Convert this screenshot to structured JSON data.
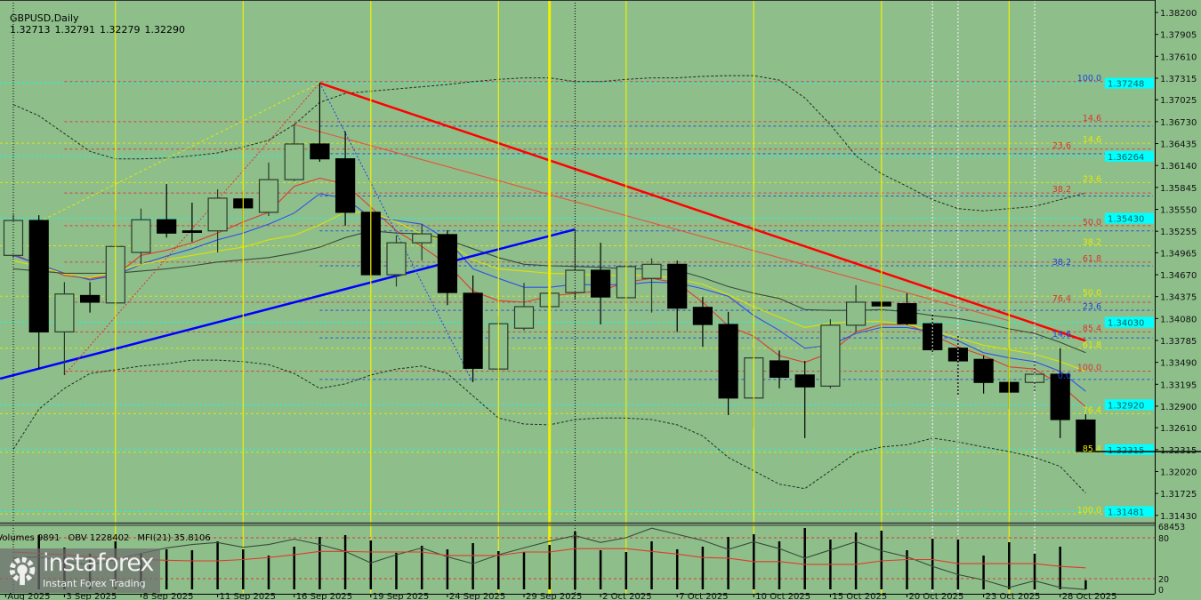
{
  "header": {
    "symbol": "GBPUSD,Daily",
    "open": "1.32713",
    "high": "1.32791",
    "low": "1.32279",
    "close": "1.32290"
  },
  "indicator_header": {
    "volumes": "Volumes 9891",
    "obv": "OBV 1228402",
    "mfi": "MFI(21) 35.8106"
  },
  "indicator_axis": [
    "68453",
    "80",
    "20",
    "0"
  ],
  "logo": {
    "brand": "instaforex",
    "tagline": "Instant Forex Trading"
  },
  "colors": {
    "background": "#8ebf8b",
    "bull_body": "#8ebf8b",
    "bear_body": "#000000",
    "trend_down": "#ff0000",
    "trend_up": "#0000ff",
    "cyan_level": "#00ffff",
    "fib_red": "#e03030",
    "fib_yellow": "#e8e800",
    "fib_blue": "#2040e0",
    "ma_red": "#e03a2a",
    "ma_blue": "#3050e8",
    "ma_yellow": "#e0e000",
    "ma_gray": "#3a4a3a",
    "mfi": "#e03a2a",
    "obv": "#3a4a3a"
  },
  "chart_data": {
    "type": "candlestick",
    "title": "GBPUSD,Daily",
    "ylim": [
      1.31332,
      1.38356
    ],
    "y_ticks": [
      "1.38200",
      "1.37905",
      "1.37610",
      "1.37315",
      "1.37025",
      "1.36730",
      "1.36435",
      "1.36140",
      "1.35845",
      "1.35550",
      "1.35255",
      "1.34965",
      "1.34670",
      "1.34375",
      "1.34080",
      "1.33785",
      "1.33490",
      "1.33195",
      "1.32900",
      "1.32610",
      "1.32315",
      "1.32020",
      "1.31725",
      "1.31430"
    ],
    "x_ticks": [
      {
        "label": "Aug 2025",
        "index": -0.3
      },
      {
        "label": "3 Sep 2025",
        "index": 2
      },
      {
        "label": "8 Sep 2025",
        "index": 5
      },
      {
        "label": "11 Sep 2025",
        "index": 8
      },
      {
        "label": "16 Sep 2025",
        "index": 11
      },
      {
        "label": "19 Sep 2025",
        "index": 14
      },
      {
        "label": "24 Sep 2025",
        "index": 17
      },
      {
        "label": "29 Sep 2025",
        "index": 20
      },
      {
        "label": "2 Oct 2025",
        "index": 23
      },
      {
        "label": "7 Oct 2025",
        "index": 26
      },
      {
        "label": "10 Oct 2025",
        "index": 29
      },
      {
        "label": "15 Oct 2025",
        "index": 32
      },
      {
        "label": "20 Oct 2025",
        "index": 35
      },
      {
        "label": "23 Oct 2025",
        "index": 38
      },
      {
        "label": "28 Oct 2025",
        "index": 41
      }
    ],
    "candles": [
      [
        "2025-09-01",
        1.3493,
        1.3548,
        1.349,
        1.354
      ],
      [
        "2025-09-02",
        1.354,
        1.3547,
        1.334,
        1.339
      ],
      [
        "2025-09-03",
        1.339,
        1.3457,
        1.3332,
        1.3441
      ],
      [
        "2025-09-04",
        1.3439,
        1.3457,
        1.3416,
        1.343
      ],
      [
        "2025-09-05",
        1.3429,
        1.3553,
        1.3426,
        1.3505
      ],
      [
        "2025-09-08",
        1.3497,
        1.3556,
        1.3481,
        1.3541
      ],
      [
        "2025-09-09",
        1.3541,
        1.3589,
        1.3517,
        1.3523
      ],
      [
        "2025-09-10",
        1.3526,
        1.3564,
        1.3511,
        1.3524
      ],
      [
        "2025-09-11",
        1.3526,
        1.3582,
        1.3497,
        1.357
      ],
      [
        "2025-09-12",
        1.3569,
        1.358,
        1.3523,
        1.3557
      ],
      [
        "2025-09-15",
        1.3551,
        1.3618,
        1.3546,
        1.3595
      ],
      [
        "2025-09-16",
        1.3595,
        1.367,
        1.3593,
        1.3643
      ],
      [
        "2025-09-17",
        1.3643,
        1.3725,
        1.3619,
        1.3623
      ],
      [
        "2025-09-18",
        1.3623,
        1.366,
        1.3533,
        1.3551
      ],
      [
        "2025-09-19",
        1.3551,
        1.3558,
        1.3462,
        1.3467
      ],
      [
        "2025-09-22",
        1.3467,
        1.352,
        1.3451,
        1.351
      ],
      [
        "2025-09-23",
        1.351,
        1.3535,
        1.3486,
        1.3522
      ],
      [
        "2025-09-24",
        1.3521,
        1.3527,
        1.3426,
        1.3443
      ],
      [
        "2025-09-25",
        1.3442,
        1.3466,
        1.3323,
        1.3341
      ],
      [
        "2025-09-26",
        1.334,
        1.3412,
        1.3328,
        1.3401
      ],
      [
        "2025-09-29",
        1.3395,
        1.3456,
        1.3392,
        1.3424
      ],
      [
        "2025-09-30",
        1.3424,
        1.3466,
        1.3401,
        1.3442
      ],
      [
        "2025-10-01",
        1.3443,
        1.3527,
        1.3434,
        1.3473
      ],
      [
        "2025-10-02",
        1.3473,
        1.351,
        1.34,
        1.3437
      ],
      [
        "2025-10-03",
        1.3436,
        1.3485,
        1.3428,
        1.3478
      ],
      [
        "2025-10-06",
        1.3462,
        1.3489,
        1.3416,
        1.3481
      ],
      [
        "2025-10-07",
        1.3481,
        1.3486,
        1.339,
        1.3422
      ],
      [
        "2025-10-08",
        1.3423,
        1.3437,
        1.337,
        1.34
      ],
      [
        "2025-10-09",
        1.34,
        1.3417,
        1.3278,
        1.3301
      ],
      [
        "2025-10-10",
        1.3301,
        1.3369,
        1.326,
        1.3355
      ],
      [
        "2025-10-13",
        1.3351,
        1.3365,
        1.3314,
        1.3329
      ],
      [
        "2025-10-14",
        1.3332,
        1.3351,
        1.3247,
        1.3316
      ],
      [
        "2025-10-15",
        1.3317,
        1.3407,
        1.3314,
        1.3399
      ],
      [
        "2025-10-16",
        1.3399,
        1.3453,
        1.339,
        1.343
      ],
      [
        "2025-10-17",
        1.343,
        1.3469,
        1.339,
        1.3425
      ],
      [
        "2025-10-20",
        1.3428,
        1.3442,
        1.3399,
        1.3401
      ],
      [
        "2025-10-21",
        1.3401,
        1.3414,
        1.336,
        1.3366
      ],
      [
        "2025-10-22",
        1.3368,
        1.3386,
        1.3304,
        1.3351
      ],
      [
        "2025-10-23",
        1.3353,
        1.3358,
        1.3307,
        1.3322
      ],
      [
        "2025-10-24",
        1.3322,
        1.3368,
        1.3286,
        1.3309
      ],
      [
        "2025-10-27",
        1.3322,
        1.3351,
        1.331,
        1.3333
      ],
      [
        "2025-10-28",
        1.3333,
        1.3368,
        1.3247,
        1.3272
      ],
      [
        "2025-10-29",
        1.32713,
        1.32791,
        1.32279,
        1.3229
      ]
    ],
    "moving_averages": [
      {
        "color": "#e03a2a",
        "values": [
          1.3495,
          1.348,
          1.3466,
          1.3462,
          1.3466,
          1.3493,
          1.35,
          1.351,
          1.3523,
          1.3538,
          1.3551,
          1.3586,
          1.3597,
          1.3589,
          1.3558,
          1.3526,
          1.3505,
          1.3481,
          1.3445,
          1.3432,
          1.343,
          1.3438,
          1.3442,
          1.3445,
          1.3457,
          1.3462,
          1.3456,
          1.343,
          1.3398,
          1.3384,
          1.3358,
          1.3349,
          1.3362,
          1.339,
          1.34,
          1.34,
          1.3386,
          1.337,
          1.3358,
          1.3343,
          1.334,
          1.3319,
          1.3289
        ]
      },
      {
        "color": "#3050e8",
        "values": [
          1.3493,
          1.3481,
          1.3469,
          1.346,
          1.3466,
          1.3481,
          1.3492,
          1.3502,
          1.3514,
          1.3523,
          1.3535,
          1.355,
          1.3576,
          1.357,
          1.3544,
          1.354,
          1.3535,
          1.3514,
          1.3475,
          1.3462,
          1.345,
          1.345,
          1.3454,
          1.3453,
          1.3454,
          1.3457,
          1.3456,
          1.3448,
          1.3438,
          1.3412,
          1.3392,
          1.3368,
          1.3372,
          1.3388,
          1.3396,
          1.3396,
          1.339,
          1.3378,
          1.3362,
          1.3355,
          1.335,
          1.3337,
          1.331
        ]
      },
      {
        "color": "#e0e000",
        "values": [
          1.3486,
          1.3478,
          1.3468,
          1.3463,
          1.3472,
          1.3481,
          1.3487,
          1.3493,
          1.3499,
          1.3504,
          1.3514,
          1.352,
          1.3534,
          1.3551,
          1.3551,
          1.3538,
          1.3522,
          1.3511,
          1.3487,
          1.3475,
          1.3472,
          1.3469,
          1.3468,
          1.3466,
          1.3466,
          1.3466,
          1.3462,
          1.3454,
          1.344,
          1.3424,
          1.341,
          1.3396,
          1.3402,
          1.3404,
          1.3404,
          1.34,
          1.3392,
          1.3382,
          1.3372,
          1.3366,
          1.336,
          1.335,
          1.3337
        ]
      },
      {
        "color": "#3a4a3a",
        "values": [
          1.3475,
          1.3472,
          1.3469,
          1.3469,
          1.3469,
          1.3472,
          1.3475,
          1.3479,
          1.3484,
          1.3487,
          1.349,
          1.3496,
          1.3504,
          1.3517,
          1.3526,
          1.3523,
          1.3522,
          1.3514,
          1.3502,
          1.349,
          1.3481,
          1.3479,
          1.3478,
          1.3477,
          1.3475,
          1.3475,
          1.3473,
          1.3463,
          1.3451,
          1.3442,
          1.3435,
          1.342,
          1.3419,
          1.3419,
          1.342,
          1.3417,
          1.3412,
          1.3408,
          1.3402,
          1.3394,
          1.3388,
          1.3376,
          1.3362
        ]
      }
    ],
    "bollinger_upper": [
      1.3696,
      1.3681,
      1.3657,
      1.3633,
      1.3623,
      1.3623,
      1.3624,
      1.3627,
      1.3631,
      1.3639,
      1.3648,
      1.3669,
      1.3699,
      1.3711,
      1.3714,
      1.3717,
      1.372,
      1.3723,
      1.3727,
      1.373,
      1.3732,
      1.3732,
      1.3727,
      1.3727,
      1.373,
      1.3732,
      1.3732,
      1.3734,
      1.3735,
      1.3735,
      1.3729,
      1.3705,
      1.3669,
      1.3627,
      1.3603,
      1.3586,
      1.3568,
      1.3556,
      1.3553,
      1.3556,
      1.3559,
      1.3568,
      1.3577
    ],
    "bollinger_lower": [
      1.3232,
      1.3286,
      1.3314,
      1.3334,
      1.3339,
      1.3344,
      1.3347,
      1.3352,
      1.3352,
      1.335,
      1.3346,
      1.3334,
      1.3314,
      1.332,
      1.3332,
      1.334,
      1.3344,
      1.3334,
      1.3304,
      1.3274,
      1.3266,
      1.3265,
      1.3272,
      1.3274,
      1.3274,
      1.3272,
      1.3265,
      1.325,
      1.3221,
      1.3203,
      1.3185,
      1.3179,
      1.3203,
      1.3227,
      1.3235,
      1.3238,
      1.3247,
      1.3242,
      1.3235,
      1.3229,
      1.3221,
      1.3209,
      1.3173
    ],
    "trendlines": [
      {
        "kind": "down-trend",
        "color": "#ff0000",
        "width": 2.5,
        "dash": "",
        "from": [
          12,
          1.3725
        ],
        "to": [
          42,
          1.3378
        ]
      },
      {
        "kind": "up-trend",
        "color": "#0000ff",
        "width": 2.5,
        "dash": "",
        "from": [
          -0.52,
          1.3327
        ],
        "to": [
          22,
          1.3528
        ]
      },
      {
        "kind": "channel",
        "color": "#e05a40",
        "width": 1.2,
        "dash": "",
        "from": [
          11,
          1.3669
        ],
        "to": [
          39,
          1.3405
        ]
      },
      {
        "kind": "fib-swing-down",
        "color": "#2040e0",
        "width": 1,
        "dash": "2,2",
        "from": [
          12,
          1.3725
        ],
        "to": [
          18,
          1.3322
        ]
      },
      {
        "kind": "fib-swing-up",
        "color": "#e03030",
        "width": 1,
        "dash": "2,2",
        "from": [
          2,
          1.3332
        ],
        "to": [
          12,
          1.3725
        ]
      },
      {
        "kind": "fib-swing-up-2",
        "color": "#e8e800",
        "width": 1,
        "dash": "3,3",
        "from": [
          1,
          1.3538
        ],
        "to": [
          12,
          1.3725
        ]
      }
    ],
    "fib_levels": [
      {
        "label": "100.0",
        "price": 1.3727,
        "color": "#2040e0",
        "line": "#e03030",
        "start": 2
      },
      {
        "label": "14.6",
        "price": 1.3673,
        "color": "#e03030",
        "line": "#e03030",
        "start": 2
      },
      {
        "label": "",
        "price": 1.3667,
        "color": "#2040e0",
        "line": "#2040e0",
        "start": 12
      },
      {
        "label": "14.6",
        "price": 1.3644,
        "color": "#e8e800",
        "line": "#e8e800",
        "start": -1
      },
      {
        "label": "23.6",
        "price": 1.3636,
        "color": "#e03030",
        "line": "#e03030",
        "start": 2
      },
      {
        "label": "",
        "price": 1.363,
        "color": "#2040e0",
        "line": "#2040e0",
        "start": 12
      },
      {
        "label": "23.6",
        "price": 1.3591,
        "color": "#e8e800",
        "line": "#e8e800",
        "start": -1
      },
      {
        "label": "38.2",
        "price": 1.3577,
        "color": "#e03030",
        "line": "#e03030",
        "start": 2
      },
      {
        "label": "",
        "price": 1.3573,
        "color": "#2040e0",
        "line": "#2040e0",
        "start": 12
      },
      {
        "label": "50.0",
        "price": 1.3533,
        "color": "#e03030",
        "line": "#e03030",
        "start": 2
      },
      {
        "label": "",
        "price": 1.3526,
        "color": "#2040e0",
        "line": "#2040e0",
        "start": 12
      },
      {
        "label": "38.2",
        "price": 1.3506,
        "color": "#e8e800",
        "line": "#e8e800",
        "start": -1
      },
      {
        "label": "61.8",
        "price": 1.3484,
        "color": "#e03030",
        "line": "#e03030",
        "start": 2
      },
      {
        "label": "38.2",
        "price": 1.3479,
        "color": "#2040e0",
        "line": "#2040e0",
        "start": 12
      },
      {
        "label": "50.0",
        "price": 1.3438,
        "color": "#e8e800",
        "line": "#e8e800",
        "start": -1
      },
      {
        "label": "76.4",
        "price": 1.343,
        "color": "#e03030",
        "line": "#e03030",
        "start": 2
      },
      {
        "label": "23.6",
        "price": 1.3419,
        "color": "#2040e0",
        "line": "#2040e0",
        "start": 12
      },
      {
        "label": "85.4",
        "price": 1.339,
        "color": "#e03030",
        "line": "#e03030",
        "start": 2
      },
      {
        "label": "14.6",
        "price": 1.3382,
        "color": "#2040e0",
        "line": "#2040e0",
        "start": 12
      },
      {
        "label": "61.8",
        "price": 1.3368,
        "color": "#e8e800",
        "line": "#e8e800",
        "start": -1
      },
      {
        "label": "100.0",
        "price": 1.3337,
        "color": "#e03030",
        "line": "#e03030",
        "start": 2
      },
      {
        "label": "0.0",
        "price": 1.3326,
        "color": "#2040e0",
        "line": "#2040e0",
        "start": 12
      },
      {
        "label": "76.4",
        "price": 1.328,
        "color": "#e8e800",
        "line": "#e8e800",
        "start": -1
      },
      {
        "label": "85.4",
        "price": 1.3228,
        "color": "#e8e800",
        "line": "#e8e800",
        "start": -1
      },
      {
        "label": "100.0",
        "price": 1.3145,
        "color": "#e8e800",
        "line": "#e8e800",
        "start": -1
      }
    ],
    "cyan_levels": [
      "1.37248",
      "1.36264",
      "1.35430",
      "1.34030",
      "1.32920",
      "1.32315",
      "1.31481"
    ],
    "vertical_lines": {
      "yellow": [
        4,
        9,
        14,
        19,
        21,
        24,
        29,
        34,
        39
      ],
      "yellow_thick": [
        21
      ],
      "black_dotted": [
        0,
        22
      ],
      "white_dotted": [
        36,
        37,
        40
      ]
    },
    "volumes": [
      null,
      58800,
      45300,
      38560,
      52060,
      39520,
      43380,
      42420,
      52060,
      43380,
      36630,
      46270,
      56880,
      58800,
      53020,
      39520,
      47240,
      43380,
      50130,
      41450,
      40490,
      48200,
      62660,
      42420,
      40490,
      52060,
      43380,
      46270,
      56880,
      59770,
      52060,
      66520,
      53980,
      61700,
      63620,
      42420,
      54950,
      53980,
      36630,
      51090,
      38560,
      46270,
      9891
    ],
    "volume_max": 68453,
    "mfi": [
      59,
      57,
      55,
      52,
      50,
      48,
      47,
      46,
      46,
      48,
      51,
      55,
      60,
      60,
      59,
      59,
      59,
      54,
      54,
      54,
      59,
      59,
      64,
      64,
      64,
      60,
      56,
      51,
      50,
      45,
      45,
      41,
      41,
      41,
      46,
      48,
      48,
      42,
      42,
      42,
      42,
      38,
      35.81
    ],
    "mfi_levels": [
      80,
      20
    ],
    "obv_relative": [
      50,
      52,
      45,
      40,
      48,
      57,
      65,
      70,
      73,
      66,
      70,
      78,
      70,
      60,
      43,
      55,
      65,
      52,
      42,
      55,
      65,
      75,
      83,
      73,
      80,
      94,
      85,
      76,
      63,
      74,
      64,
      50,
      62,
      74,
      61,
      52,
      38,
      26,
      18,
      7,
      17,
      7,
      4
    ]
  }
}
